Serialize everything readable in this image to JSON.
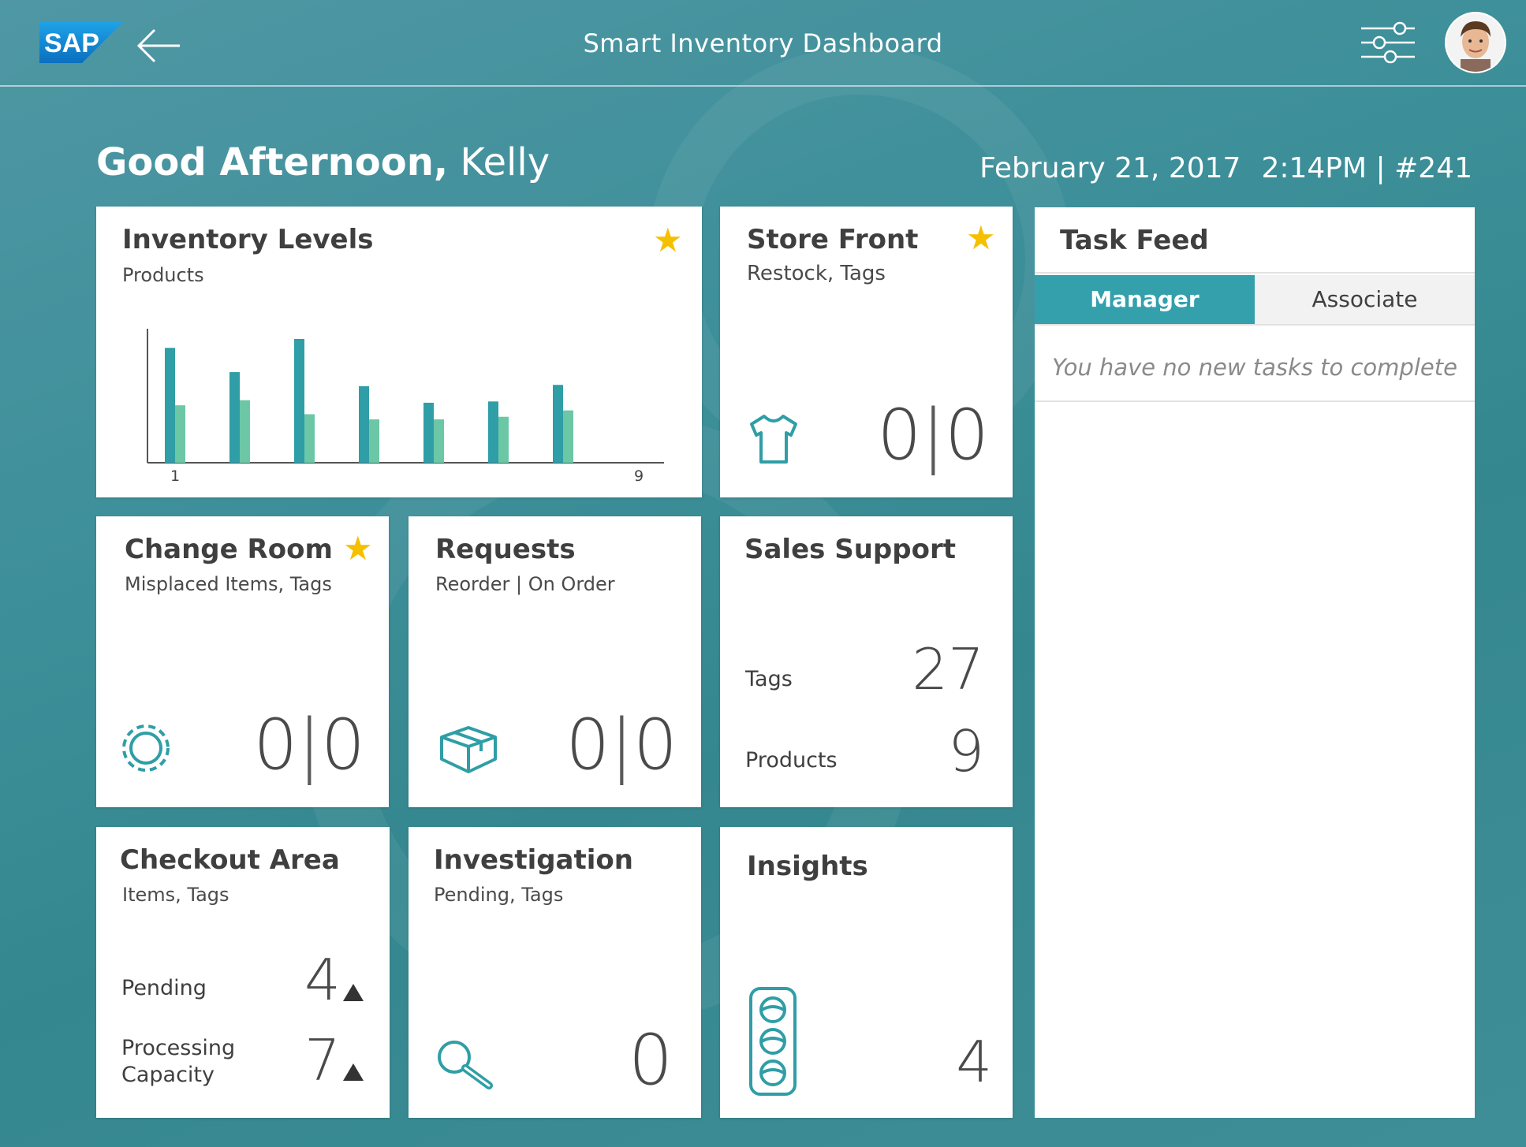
{
  "header": {
    "logo": "SAP",
    "back_icon": "back-arrow-icon",
    "title": "Smart Inventory Dashboard",
    "settings_icon": "settings-sliders-icon",
    "avatar_icon": "user-avatar"
  },
  "greeting": {
    "salutation": "Good Afternoon,",
    "name": "Kelly"
  },
  "datetime": {
    "date": "February 21, 2017",
    "time": "2:14PM",
    "separator": "|",
    "store": "#241"
  },
  "tiles": {
    "inventory": {
      "title": "Inventory Levels",
      "subtitle": "Products",
      "favorite": true,
      "chart_data": {
        "type": "bar",
        "series": [
          {
            "color": "#2f9ea6",
            "values": [
              90,
              71,
              97,
              60,
              47,
              48,
              61
            ]
          },
          {
            "color": "#6cc7a6",
            "values": [
              45,
              49,
              38,
              34,
              34,
              36,
              41
            ]
          }
        ],
        "x_tick_labels": [
          "1",
          "9"
        ],
        "ylim": [
          0,
          105
        ]
      }
    },
    "store_front": {
      "title": "Store Front",
      "subtitle": "Restock, Tags",
      "favorite": true,
      "icon": "tshirt-icon",
      "value_left": "0",
      "separator": "|",
      "value_right": "0"
    },
    "change_room": {
      "title": "Change Room",
      "subtitle": "Misplaced Items, Tags",
      "favorite": true,
      "icon": "dashed-circle-icon",
      "value_left": "0",
      "separator": "|",
      "value_right": "0"
    },
    "requests": {
      "title": "Requests",
      "subtitle": "Reorder | On Order",
      "icon": "box-icon",
      "value_left": "0",
      "separator": "|",
      "value_right": "0"
    },
    "sales_support": {
      "title": "Sales Support",
      "rows": [
        {
          "label": "Tags",
          "value": "27"
        },
        {
          "label": "Products",
          "value": "9"
        }
      ]
    },
    "checkout": {
      "title": "Checkout Area",
      "subtitle": "Items, Tags",
      "rows": [
        {
          "label": "Pending",
          "value": "4",
          "trend": "up"
        },
        {
          "label_line1": "Processing",
          "label_line2": "Capacity",
          "value": "7",
          "trend": "up"
        }
      ]
    },
    "investigation": {
      "title": "Investigation",
      "subtitle": "Pending, Tags",
      "icon": "magnifier-icon",
      "value": "0"
    },
    "insights": {
      "title": "Insights",
      "icon": "traffic-light-icon",
      "value": "4"
    }
  },
  "task_feed": {
    "title": "Task Feed",
    "tabs": [
      {
        "label": "Manager",
        "active": true
      },
      {
        "label": "Associate",
        "active": false
      }
    ],
    "empty_message": "You have no new tasks to complete"
  },
  "colors": {
    "accent": "#33a0ac",
    "star": "#f5c000",
    "bar_primary": "#2f9ea6",
    "bar_secondary": "#6cc7a6"
  }
}
